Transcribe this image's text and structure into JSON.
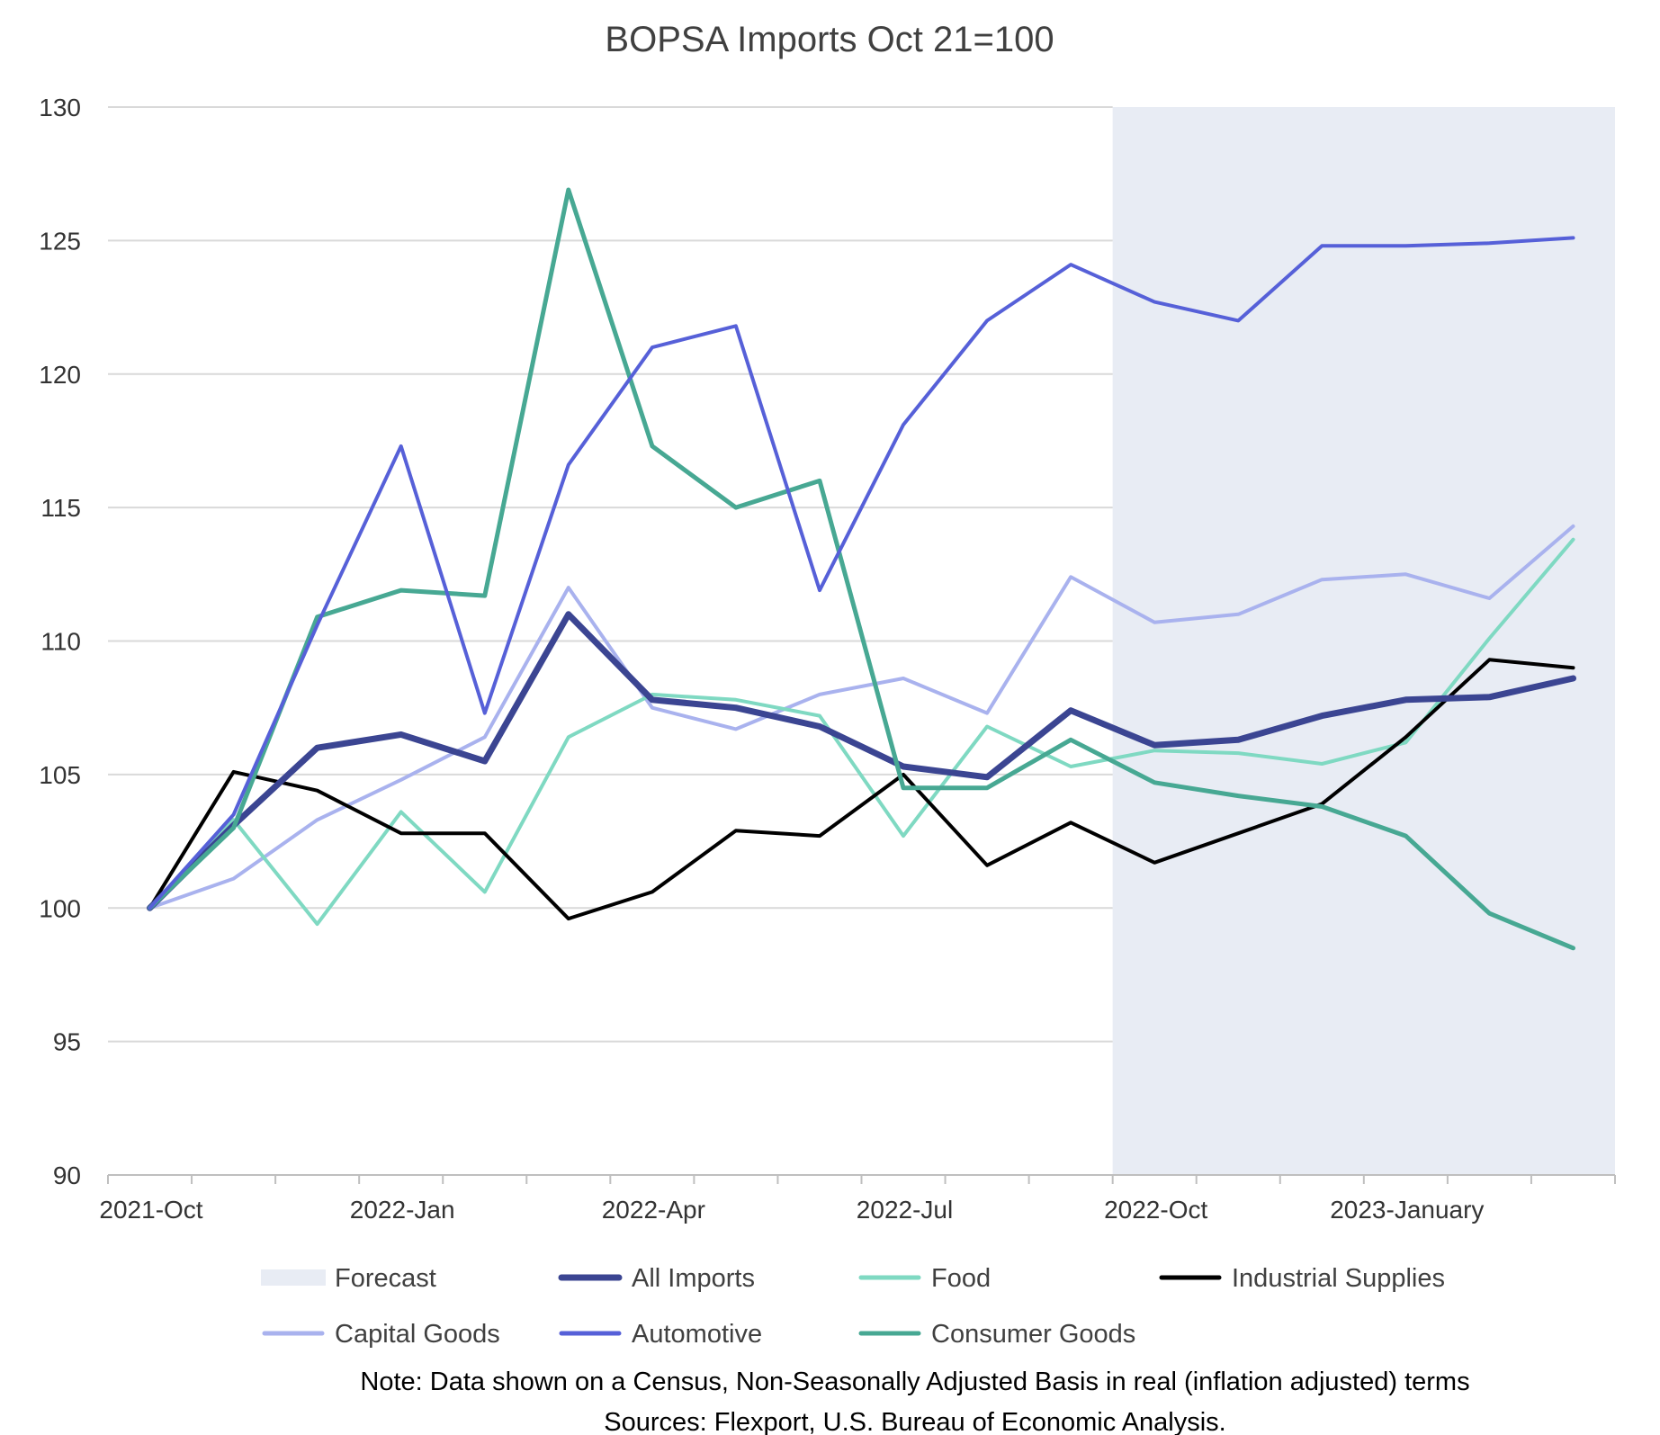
{
  "chart_data": {
    "type": "line",
    "title": "BOPSA Imports Oct 21=100",
    "xlabel": "",
    "ylabel": "",
    "ylim": [
      90,
      130
    ],
    "yticks": [
      90,
      95,
      100,
      105,
      110,
      115,
      120,
      125,
      130
    ],
    "x": [
      "2021-Oct",
      "2021-Nov",
      "2021-Dec",
      "2022-Jan",
      "2022-Feb",
      "2022-Mar",
      "2022-Apr",
      "2022-May",
      "2022-Jun",
      "2022-Jul",
      "2022-Aug",
      "2022-Sep",
      "2022-Oct",
      "2022-Nov",
      "2022-Dec",
      "2023-January",
      "2023-Feb",
      "2023-Mar"
    ],
    "x_tick_labels": [
      {
        "index": 0,
        "label": "2021-Oct"
      },
      {
        "index": 3,
        "label": "2022-Jan"
      },
      {
        "index": 6,
        "label": "2022-Apr"
      },
      {
        "index": 9,
        "label": "2022-Jul"
      },
      {
        "index": 12,
        "label": "2022-Oct"
      },
      {
        "index": 15,
        "label": "2023-January"
      }
    ],
    "forecast_range": {
      "start": "2022-Oct",
      "end": "2023-Mar",
      "label": "Forecast",
      "color": "#e8ecf4"
    },
    "series": [
      {
        "name": "All Imports",
        "color": "#3b4592",
        "width": 7,
        "values": [
          100,
          103.1,
          106.0,
          106.5,
          105.5,
          111.0,
          107.8,
          107.5,
          106.8,
          105.3,
          104.9,
          107.4,
          106.1,
          106.3,
          107.2,
          107.8,
          107.9,
          108.6
        ]
      },
      {
        "name": "Food",
        "color": "#7fd9c2",
        "width": 4,
        "values": [
          100,
          103.3,
          99.4,
          103.6,
          100.6,
          106.4,
          108.0,
          107.8,
          107.2,
          102.7,
          106.8,
          105.3,
          105.9,
          105.8,
          105.4,
          106.2,
          110.1,
          113.8
        ]
      },
      {
        "name": "Industrial Supplies",
        "color": "#000000",
        "width": 4,
        "values": [
          100,
          105.1,
          104.4,
          102.8,
          102.8,
          99.6,
          100.6,
          102.9,
          102.7,
          105.0,
          101.6,
          103.2,
          101.7,
          102.8,
          103.9,
          106.4,
          109.3,
          109.0
        ]
      },
      {
        "name": "Capital Goods",
        "color": "#a9b2ee",
        "width": 4,
        "values": [
          100,
          101.1,
          103.3,
          104.8,
          106.4,
          112.0,
          107.5,
          106.7,
          108.0,
          108.6,
          107.3,
          112.4,
          110.7,
          111.0,
          112.3,
          112.5,
          111.6,
          114.3
        ]
      },
      {
        "name": "Automotive",
        "color": "#5660d8",
        "width": 4,
        "values": [
          100,
          103.5,
          110.6,
          117.3,
          107.3,
          116.6,
          121.0,
          121.8,
          111.9,
          118.1,
          122.0,
          124.1,
          122.7,
          122.0,
          124.8,
          124.8,
          124.9,
          125.1
        ]
      },
      {
        "name": "Consumer Goods",
        "color": "#47a893",
        "width": 5,
        "values": [
          100,
          103.0,
          110.9,
          111.9,
          111.7,
          126.9,
          117.3,
          115.0,
          116.0,
          104.5,
          104.5,
          106.3,
          104.7,
          104.2,
          103.8,
          102.7,
          99.8,
          98.5
        ]
      }
    ],
    "legend": [
      "Forecast",
      "All Imports",
      "Food",
      "Industrial Supplies",
      "Capital Goods",
      "Automotive",
      "Consumer Goods"
    ],
    "legend_position": "bottom"
  },
  "notes": {
    "line1": "Note: Data shown on a Census, Non-Seasonally Adjusted Basis in real (inflation adjusted) terms",
    "line2": "Sources: Flexport, U.S. Bureau of Economic Analysis."
  }
}
